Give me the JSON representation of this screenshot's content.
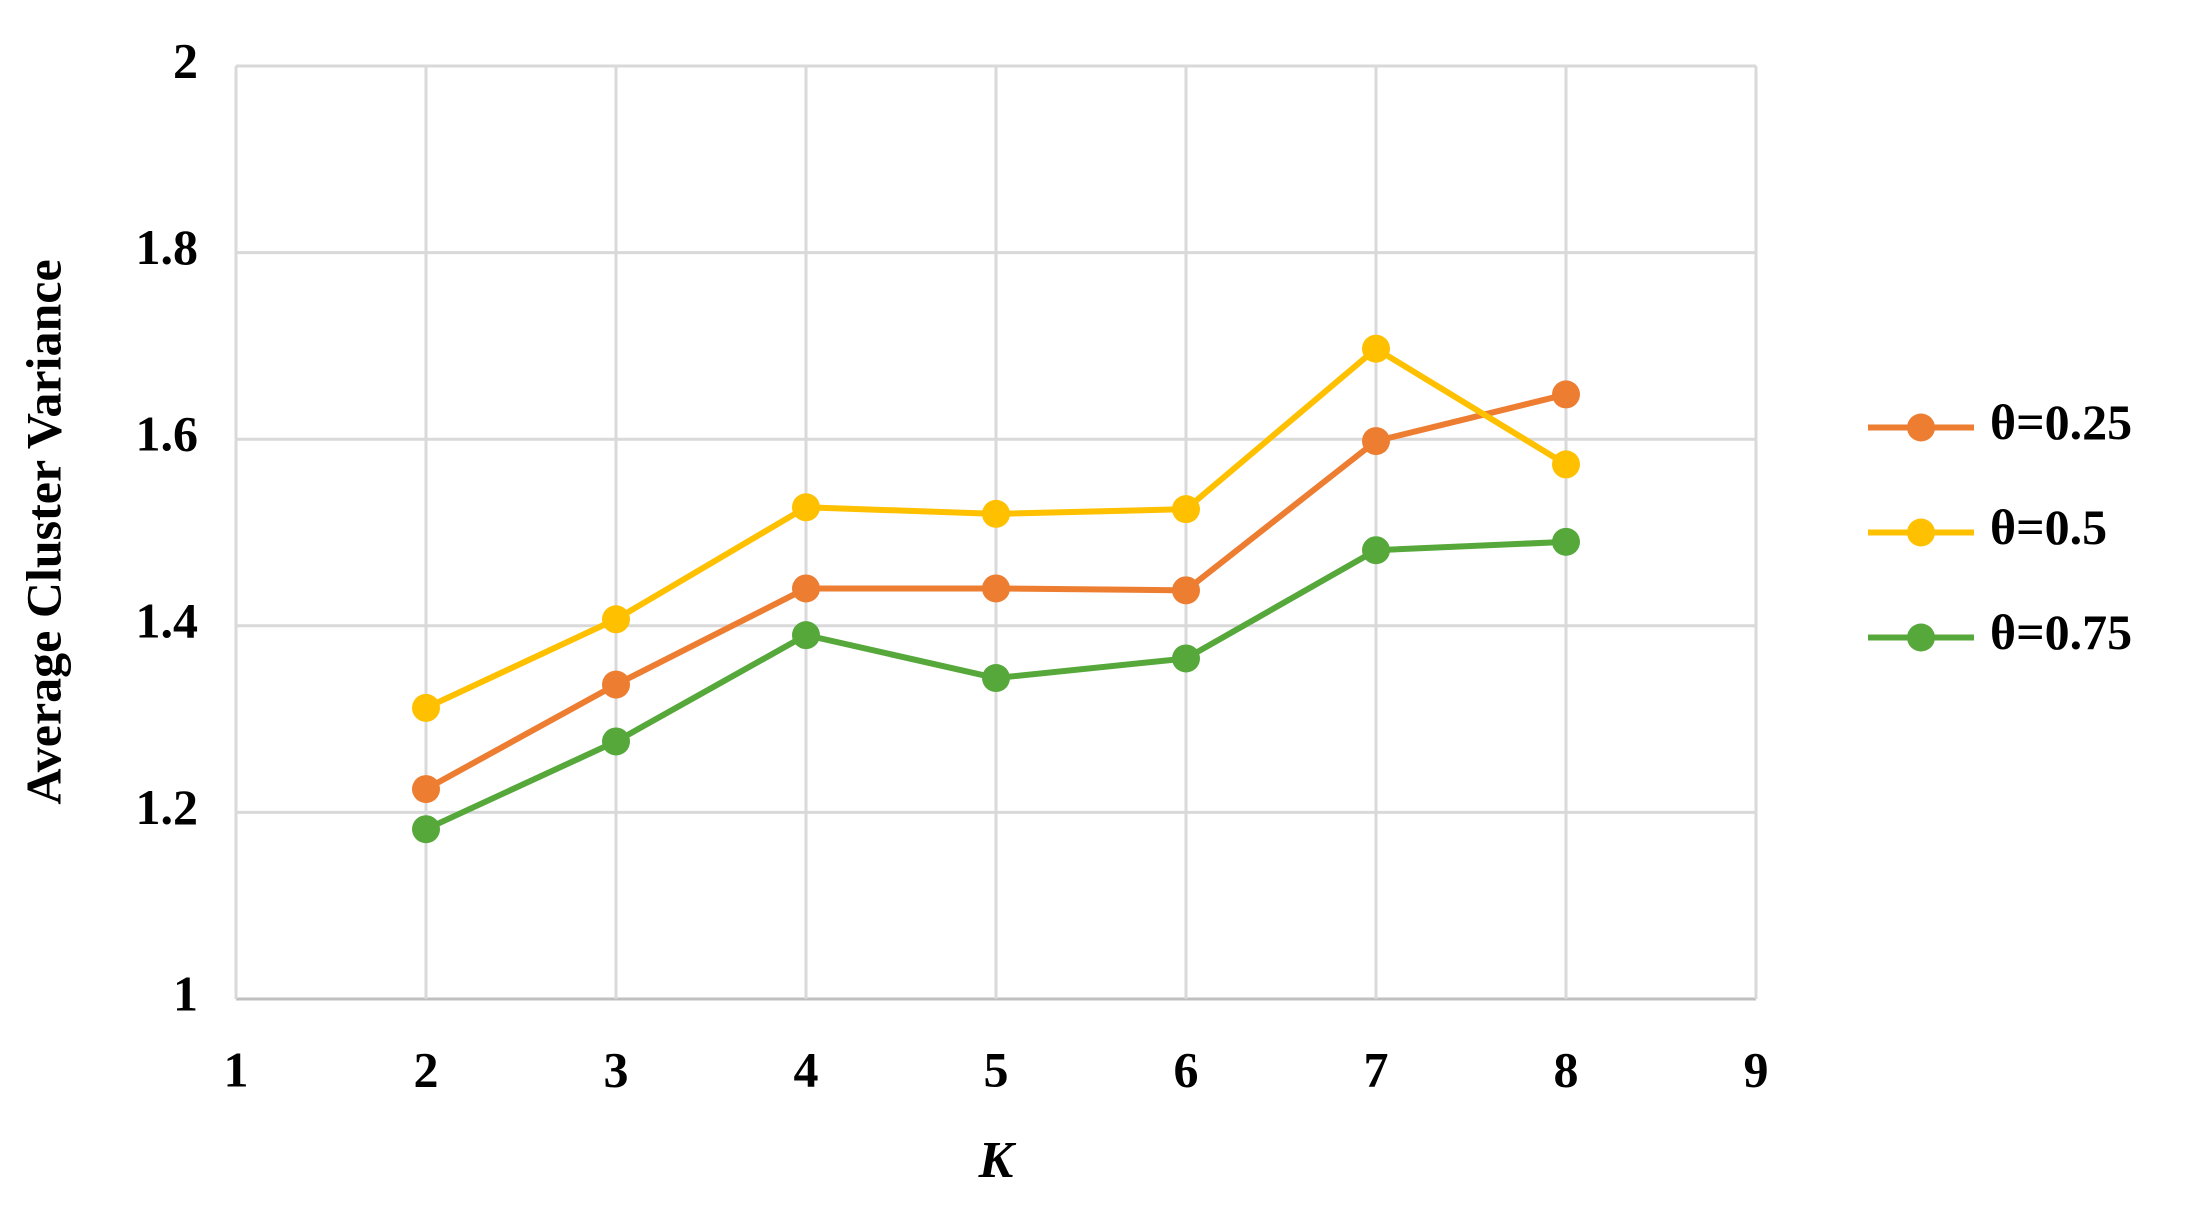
{
  "chart_data": {
    "type": "line",
    "x_label": "K",
    "y_label": "Average Cluster Variance",
    "x": [
      2,
      3,
      4,
      5,
      6,
      7,
      8
    ],
    "series": [
      {
        "name": "θ=0.25",
        "color": "#ed7d31",
        "values": [
          1.225,
          1.337,
          1.44,
          1.44,
          1.438,
          1.598,
          1.648
        ]
      },
      {
        "name": "θ=0.5",
        "color": "#ffc000",
        "values": [
          1.312,
          1.407,
          1.527,
          1.52,
          1.525,
          1.697,
          1.573
        ]
      },
      {
        "name": "θ=0.75",
        "color": "#56a83a",
        "values": [
          1.182,
          1.276,
          1.39,
          1.344,
          1.365,
          1.481,
          1.49
        ]
      }
    ],
    "xlim": [
      1,
      9
    ],
    "xticks": [
      1,
      2,
      3,
      4,
      5,
      6,
      7,
      8,
      9
    ],
    "ylim": [
      1,
      2
    ],
    "yticks": [
      1,
      1.2,
      1.4,
      1.6,
      1.8,
      2
    ],
    "grid": true,
    "legend": "right"
  }
}
